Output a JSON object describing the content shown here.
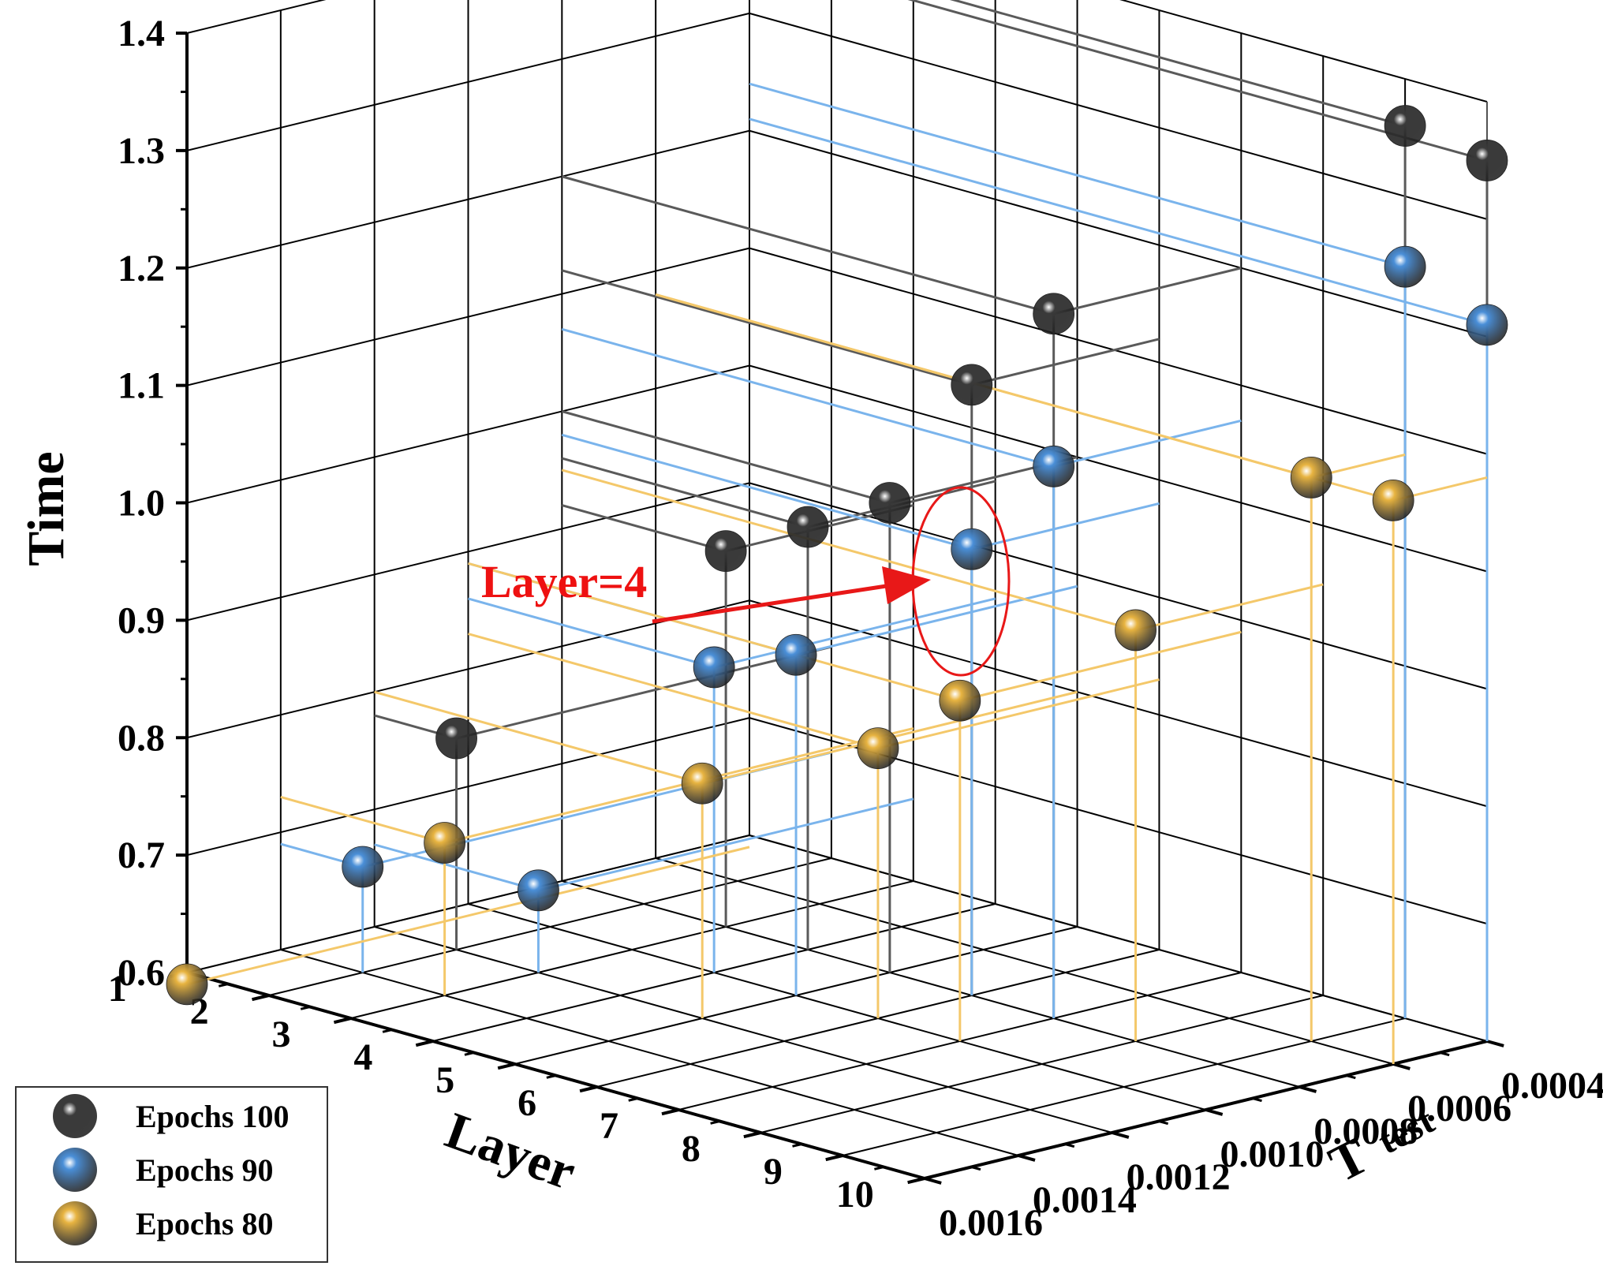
{
  "chart_data": {
    "type": "scatter3d",
    "zlabel": "Time",
    "xlabel": "Layer",
    "ylabel": "T test",
    "ylabel_main": "T",
    "ylabel_sub": "test",
    "zlim": [
      0.6,
      1.4
    ],
    "xlim": [
      1,
      10
    ],
    "ylim": [
      0.0004,
      0.0016
    ],
    "z_ticks": [
      "0.6",
      "0.7",
      "0.8",
      "0.9",
      "1.0",
      "1.1",
      "1.2",
      "1.3",
      "1.4"
    ],
    "x_ticks": [
      "1",
      "2",
      "3",
      "4",
      "5",
      "6",
      "7",
      "8",
      "9",
      "10"
    ],
    "y_ticks": [
      "0.0004",
      "0.0006",
      "0.0008",
      "0.0010",
      "0.0012",
      "0.0014",
      "0.0016"
    ],
    "annotation": "Layer=4",
    "annotation_target": {
      "layer": 4,
      "series": [
        "Epochs 100",
        "Epochs 90"
      ]
    },
    "legend_position": "bottom-left",
    "series": [
      {
        "name": "Epochs 100",
        "color": "#3a3a3a",
        "line_color": "#5a5a5a",
        "points": [
          {
            "layer": 2,
            "t_test": 0.0012,
            "time": 0.78
          },
          {
            "layer": 3,
            "t_test": 0.0008,
            "time": 0.92
          },
          {
            "layer": 4,
            "t_test": 0.0008,
            "time": 0.96
          },
          {
            "layer": 5,
            "t_test": 0.0008,
            "time": 1.0
          },
          {
            "layer": 6,
            "t_test": 0.0008,
            "time": 1.12
          },
          {
            "layer": 7,
            "t_test": 0.0008,
            "time": 1.2
          },
          {
            "layer": 9,
            "t_test": 0.0004,
            "time": 1.36
          },
          {
            "layer": 10,
            "t_test": 0.0004,
            "time": 1.35
          }
        ]
      },
      {
        "name": "Epochs 90",
        "color": "#4a8fd8",
        "line_color": "#7ab4ec",
        "points": [
          {
            "layer": 2,
            "t_test": 0.0014,
            "time": 0.69
          },
          {
            "layer": 3,
            "t_test": 0.0012,
            "time": 0.67
          },
          {
            "layer": 4,
            "t_test": 0.001,
            "time": 0.86
          },
          {
            "layer": 5,
            "t_test": 0.001,
            "time": 0.89
          },
          {
            "layer": 6,
            "t_test": 0.0008,
            "time": 0.98
          },
          {
            "layer": 7,
            "t_test": 0.0008,
            "time": 1.07
          },
          {
            "layer": 9,
            "t_test": 0.0004,
            "time": 1.24
          },
          {
            "layer": 10,
            "t_test": 0.0004,
            "time": 1.21
          }
        ]
      },
      {
        "name": "Epochs 80",
        "color": "#e8b441",
        "line_color": "#f4c86a",
        "points": [
          {
            "layer": 1,
            "t_test": 0.0016,
            "time": 0.59
          },
          {
            "layer": 3,
            "t_test": 0.0014,
            "time": 0.73
          },
          {
            "layer": 5,
            "t_test": 0.0012,
            "time": 0.8
          },
          {
            "layer": 6,
            "t_test": 0.001,
            "time": 0.83
          },
          {
            "layer": 7,
            "t_test": 0.001,
            "time": 0.89
          },
          {
            "layer": 8,
            "t_test": 0.0008,
            "time": 0.95
          },
          {
            "layer": 9,
            "t_test": 0.0006,
            "time": 1.08
          },
          {
            "layer": 10,
            "t_test": 0.0006,
            "time": 1.08
          }
        ]
      }
    ]
  }
}
